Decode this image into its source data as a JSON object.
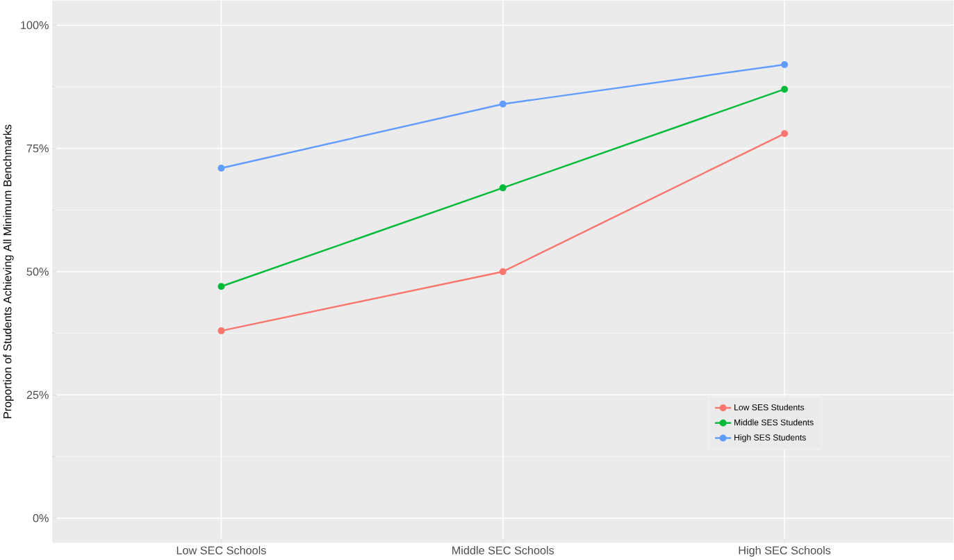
{
  "chart_data": {
    "type": "line",
    "ylabel": "Proportion of Students Achieving All Minimum Benchmarks",
    "categories": [
      "Low SEC Schools",
      "Middle SEC Schools",
      "High SEC Schools"
    ],
    "series": [
      {
        "name": "Low SES Students",
        "color": "#f8766d",
        "values": [
          38,
          50,
          78
        ]
      },
      {
        "name": "Middle SES Students",
        "color": "#00ba38",
        "values": [
          47,
          67,
          87
        ]
      },
      {
        "name": "High SES Students",
        "color": "#619cff",
        "values": [
          71,
          84,
          92
        ]
      }
    ],
    "ylim": [
      -5,
      105
    ],
    "yticks": [
      {
        "value": 0,
        "label": "0%"
      },
      {
        "value": 25,
        "label": "25%"
      },
      {
        "value": 50,
        "label": "50%"
      },
      {
        "value": 75,
        "label": "75%"
      },
      {
        "value": 100,
        "label": "100%"
      }
    ],
    "grid": true,
    "legend": "bottom right",
    "marker": "circle",
    "line_style": "solid"
  }
}
